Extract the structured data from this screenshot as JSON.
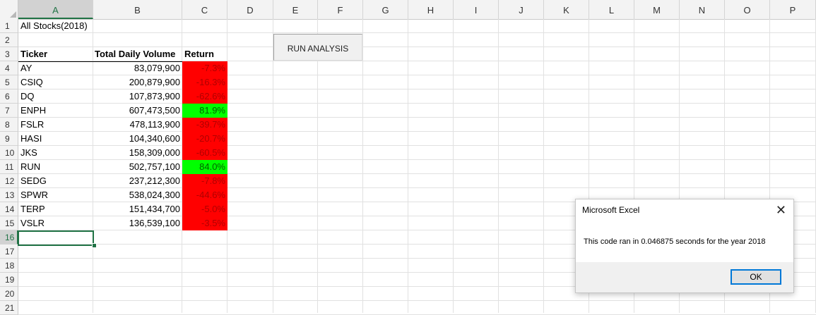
{
  "columns": [
    "A",
    "B",
    "C",
    "D",
    "E",
    "F",
    "G",
    "H",
    "I",
    "J",
    "K",
    "L",
    "M",
    "N",
    "O",
    "P"
  ],
  "rows": [
    "1",
    "2",
    "3",
    "4",
    "5",
    "6",
    "7",
    "8",
    "9",
    "10",
    "11",
    "12",
    "13",
    "14",
    "15",
    "16",
    "17",
    "18",
    "19",
    "20",
    "21"
  ],
  "sheet": {
    "title": "All Stocks(2018)",
    "headers": {
      "ticker": "Ticker",
      "volume": "Total Daily Volume",
      "return": "Return"
    },
    "data": [
      {
        "ticker": "AY",
        "volume": "83,079,900",
        "return": "-7.3%",
        "status": "red"
      },
      {
        "ticker": "CSIQ",
        "volume": "200,879,900",
        "return": "-16.3%",
        "status": "red"
      },
      {
        "ticker": "DQ",
        "volume": "107,873,900",
        "return": "-62.6%",
        "status": "red"
      },
      {
        "ticker": "ENPH",
        "volume": "607,473,500",
        "return": "81.9%",
        "status": "green"
      },
      {
        "ticker": "FSLR",
        "volume": "478,113,900",
        "return": "-39.7%",
        "status": "red"
      },
      {
        "ticker": "HASI",
        "volume": "104,340,600",
        "return": "-20.7%",
        "status": "red"
      },
      {
        "ticker": "JKS",
        "volume": "158,309,000",
        "return": "-60.5%",
        "status": "red"
      },
      {
        "ticker": "RUN",
        "volume": "502,757,100",
        "return": "84.0%",
        "status": "green"
      },
      {
        "ticker": "SEDG",
        "volume": "237,212,300",
        "return": "-7.8%",
        "status": "red"
      },
      {
        "ticker": "SPWR",
        "volume": "538,024,300",
        "return": "-44.6%",
        "status": "red"
      },
      {
        "ticker": "TERP",
        "volume": "151,434,700",
        "return": "-5.0%",
        "status": "red"
      },
      {
        "ticker": "VSLR",
        "volume": "136,539,100",
        "return": "-3.5%",
        "status": "red"
      }
    ]
  },
  "button": {
    "label": "RUN ANALYSIS"
  },
  "dialog": {
    "title": "Microsoft Excel",
    "message": "This code ran in 0.046875 seconds for the year 2018",
    "ok_label": "OK",
    "close_glyph": "✕"
  },
  "colors": {
    "negative_fill": "#ff0000",
    "positive_fill": "#00ff00",
    "selection": "#217346"
  }
}
